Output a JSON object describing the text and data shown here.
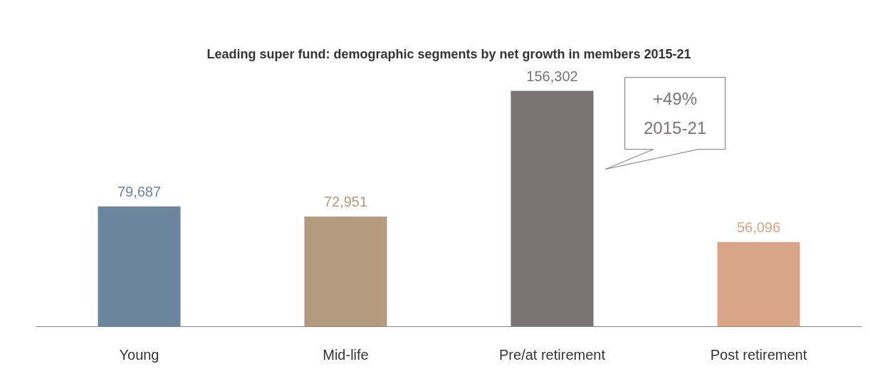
{
  "chart_data": {
    "type": "bar",
    "title": "Leading super fund: demographic segments by net growth in members 2015-21",
    "categories": [
      "Young",
      "Mid-life",
      "Pre/at retirement",
      "Post retirement"
    ],
    "values": [
      79687,
      72951,
      156302,
      56096
    ],
    "value_labels": [
      "79,687",
      "72,951",
      "156,302",
      "56,096"
    ],
    "colors": [
      "#6b869c",
      "#b49a7e",
      "#7a7475",
      "#d9a588"
    ],
    "grid": false,
    "tick_labels": "x",
    "annotations": [
      "+49%\n2015-21"
    ]
  }
}
